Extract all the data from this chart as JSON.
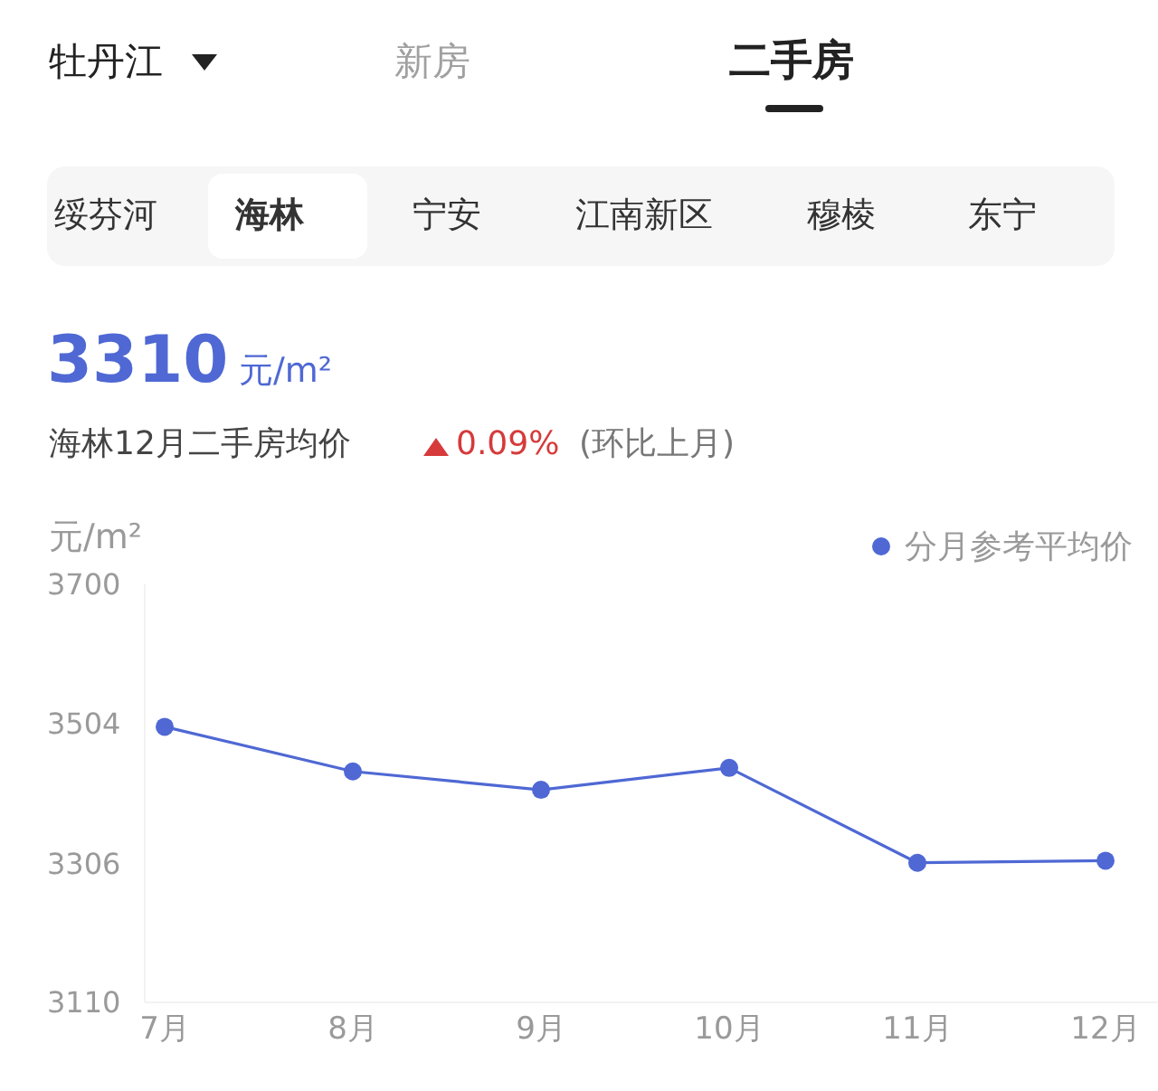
{
  "chart_data": {
    "type": "line",
    "annotations": [
      "牡丹江",
      "新房",
      "二手房",
      "绥芬河",
      "海林",
      "宁安",
      "江南新区",
      "穆棱",
      "东宁",
      "3310",
      "元/m²",
      "海林12月二手房均价",
      "0.09%",
      "(环比上月)"
    ],
    "ylabel": "元/m²",
    "categories": [
      "7月",
      "8月",
      "9月",
      "10月",
      "11月",
      "12月"
    ],
    "series": [
      {
        "name": "分月参考平均价",
        "color": "#4f68d4",
        "values": [
          3499,
          3436,
          3410,
          3441,
          3307,
          3310
        ]
      }
    ],
    "ylim": [
      3110,
      3700
    ],
    "yticks": [
      3110,
      3306,
      3504,
      3700
    ],
    "legend": "top right",
    "marker": "circle",
    "line_style": "solid"
  }
}
